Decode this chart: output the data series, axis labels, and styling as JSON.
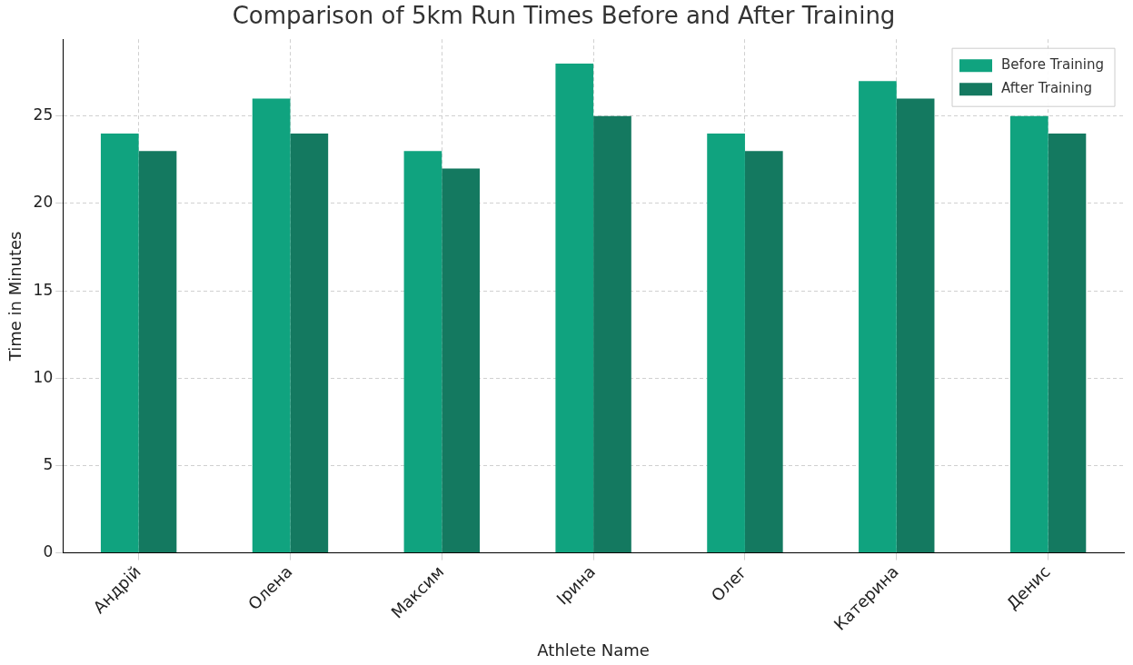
{
  "chart_data": {
    "type": "bar",
    "title": "Comparison of 5km Run Times Before and After Training",
    "xlabel": "Athlete Name",
    "ylabel": "Time in Minutes",
    "categories": [
      "Андрій",
      "Олена",
      "Максим",
      "Ірина",
      "Олег",
      "Катерина",
      "Денис"
    ],
    "series": [
      {
        "name": "Before Training",
        "color": "#10a37f",
        "values": [
          24,
          26,
          23,
          28,
          24,
          27,
          25
        ]
      },
      {
        "name": "After Training",
        "color": "#147960",
        "values": [
          23,
          24,
          22,
          25,
          23,
          26,
          24
        ]
      }
    ],
    "ylim": [
      0,
      29.4
    ],
    "yticks": [
      0,
      5,
      10,
      15,
      20,
      25
    ],
    "grid": true,
    "legend": "top right"
  }
}
